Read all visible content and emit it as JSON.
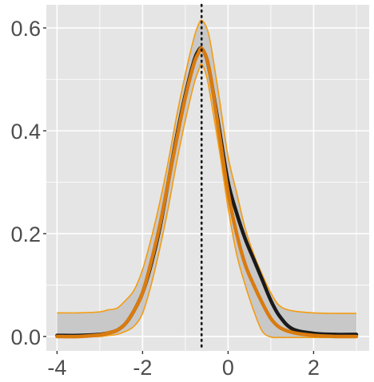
{
  "chart_data": {
    "type": "line",
    "title": "",
    "xlabel": "",
    "ylabel": "",
    "xlim": [
      -4.25,
      3.3
    ],
    "ylim": [
      -0.028,
      0.645
    ],
    "x_ticks": [
      -4,
      -2,
      0,
      2
    ],
    "x_tick_labels": [
      "-4",
      "-2",
      "0",
      "2"
    ],
    "y_ticks": [
      0.0,
      0.2,
      0.4,
      0.6
    ],
    "y_tick_labels": [
      "0.0",
      "0.2",
      "0.4",
      "0.6"
    ],
    "grid": true,
    "legend": "none",
    "vline": {
      "x": -0.62,
      "style": "dotted",
      "color": "#111111"
    },
    "colors": {
      "panel": "#e5e5e5",
      "grid": "#ffffff",
      "band_fill": "#c8c8c8",
      "band_edge": "#f39c12",
      "black_series": "#1a1a1a",
      "orange_series": "#d97b0f",
      "tick_text": "#4d4d4d"
    },
    "band": {
      "x": [
        -4.0,
        -3.5,
        -3.0,
        -2.8,
        -2.6,
        -2.4,
        -2.2,
        -2.0,
        -1.8,
        -1.6,
        -1.4,
        -1.2,
        -1.0,
        -0.8,
        -0.7,
        -0.62,
        -0.5,
        -0.4,
        -0.2,
        0.0,
        0.2,
        0.4,
        0.6,
        0.8,
        1.0,
        1.2,
        1.5,
        2.0,
        2.5,
        3.0
      ],
      "upper": [
        0.046,
        0.046,
        0.048,
        0.052,
        0.055,
        0.07,
        0.09,
        0.13,
        0.19,
        0.26,
        0.34,
        0.43,
        0.51,
        0.58,
        0.605,
        0.615,
        0.6,
        0.565,
        0.46,
        0.35,
        0.28,
        0.21,
        0.16,
        0.12,
        0.085,
        0.06,
        0.05,
        0.046,
        0.045,
        0.045
      ],
      "lower": [
        0.0,
        0.0,
        0.0,
        0.002,
        0.004,
        0.01,
        0.02,
        0.045,
        0.1,
        0.17,
        0.25,
        0.34,
        0.42,
        0.49,
        0.515,
        0.53,
        0.505,
        0.46,
        0.36,
        0.25,
        0.16,
        0.1,
        0.05,
        0.01,
        -0.001,
        -0.002,
        -0.002,
        -0.002,
        -0.002,
        -0.002
      ]
    },
    "series": [
      {
        "color": "#1a1a1a",
        "x": [
          -4.0,
          -3.5,
          -3.0,
          -2.8,
          -2.6,
          -2.4,
          -2.2,
          -2.0,
          -1.8,
          -1.6,
          -1.4,
          -1.2,
          -1.0,
          -0.8,
          -0.7,
          -0.62,
          -0.5,
          -0.4,
          -0.2,
          0.0,
          0.2,
          0.4,
          0.6,
          0.8,
          1.0,
          1.2,
          1.5,
          2.0,
          2.5,
          3.0
        ],
        "y": [
          0.002,
          0.002,
          0.004,
          0.007,
          0.012,
          0.025,
          0.05,
          0.085,
          0.14,
          0.21,
          0.3,
          0.39,
          0.47,
          0.535,
          0.555,
          0.56,
          0.54,
          0.5,
          0.4,
          0.3,
          0.24,
          0.19,
          0.15,
          0.11,
          0.07,
          0.04,
          0.015,
          0.006,
          0.004,
          0.004
        ]
      },
      {
        "color": "#d97b0f",
        "x": [
          -4.0,
          -3.5,
          -3.0,
          -2.8,
          -2.6,
          -2.4,
          -2.2,
          -2.0,
          -1.8,
          -1.6,
          -1.4,
          -1.2,
          -1.0,
          -0.8,
          -0.7,
          -0.62,
          -0.5,
          -0.4,
          -0.2,
          0.0,
          0.2,
          0.4,
          0.6,
          0.8,
          1.0,
          1.2,
          1.5,
          2.0,
          2.5,
          3.0
        ],
        "y": [
          0.0,
          0.0,
          0.003,
          0.007,
          0.012,
          0.025,
          0.05,
          0.085,
          0.145,
          0.215,
          0.3,
          0.385,
          0.465,
          0.53,
          0.55,
          0.56,
          0.54,
          0.5,
          0.39,
          0.28,
          0.2,
          0.14,
          0.1,
          0.065,
          0.035,
          0.018,
          0.008,
          0.002,
          0.0,
          0.0
        ]
      }
    ]
  }
}
